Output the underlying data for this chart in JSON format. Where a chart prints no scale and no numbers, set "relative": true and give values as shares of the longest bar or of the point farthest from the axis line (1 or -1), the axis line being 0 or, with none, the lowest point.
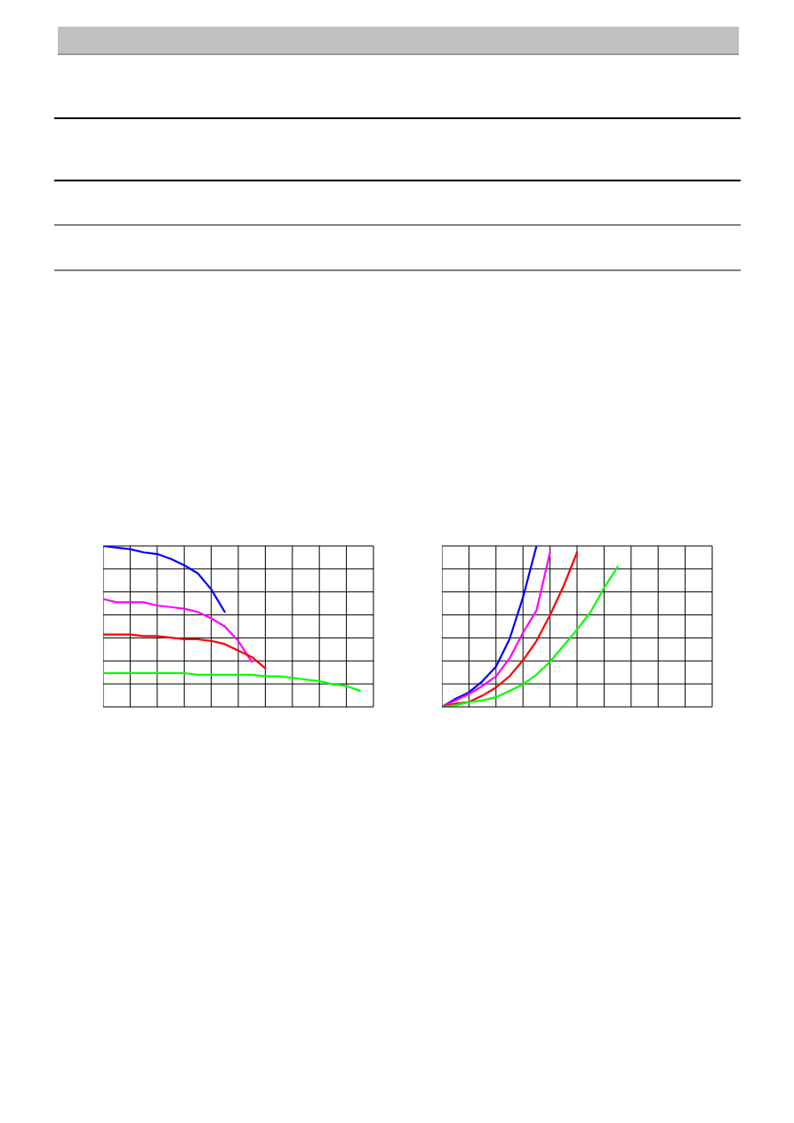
{
  "chart_data": [
    {
      "type": "line",
      "relative": true,
      "grid": true,
      "marker": "none",
      "categories": [
        null,
        null,
        null,
        null,
        null,
        null,
        null,
        null,
        null,
        null,
        null,
        null,
        null,
        null,
        null,
        null,
        null,
        null,
        null,
        null,
        null
      ],
      "series": [
        {
          "color": "#0000ff",
          "values": [
            1,
            0.99,
            0.98,
            0.96,
            0.95,
            0.92,
            0.88,
            0.83,
            0.73,
            0.59,
            null,
            null,
            null,
            null,
            null,
            null,
            null,
            null,
            null,
            null,
            null
          ]
        },
        {
          "color": "#ff00ff",
          "values": [
            0.67,
            0.65,
            0.65,
            0.65,
            0.63,
            0.62,
            0.61,
            0.59,
            0.55,
            0.5,
            0.41,
            0.28,
            null,
            null,
            null,
            null,
            null,
            null,
            null,
            null,
            null
          ]
        },
        {
          "color": "#ff0000",
          "values": [
            0.45,
            0.45,
            0.45,
            0.44,
            0.44,
            0.43,
            0.42,
            0.42,
            0.41,
            0.39,
            0.35,
            0.31,
            0.24,
            null,
            null,
            null,
            null,
            null,
            null,
            null,
            null
          ]
        },
        {
          "color": "#00ff00",
          "values": [
            0.21,
            0.21,
            0.21,
            0.21,
            0.21,
            0.21,
            0.21,
            0.2,
            0.2,
            0.2,
            0.2,
            0.2,
            0.19,
            0.19,
            0.18,
            0.17,
            0.16,
            0.14,
            0.13,
            0.1,
            null
          ]
        }
      ]
    },
    {
      "type": "line",
      "relative": true,
      "grid": true,
      "marker": "none",
      "categories": [
        null,
        null,
        null,
        null,
        null,
        null,
        null,
        null,
        null,
        null,
        null,
        null,
        null,
        null,
        null,
        null,
        null,
        null,
        null,
        null,
        null
      ],
      "series": [
        {
          "color": "#0000ff",
          "values": [
            0,
            0.05,
            0.09,
            0.16,
            0.25,
            0.42,
            0.68,
            1,
            null,
            null,
            null,
            null,
            null,
            null,
            null,
            null,
            null,
            null,
            null,
            null,
            null
          ]
        },
        {
          "color": "#ff00ff",
          "values": [
            0,
            0.04,
            0.08,
            0.13,
            0.19,
            0.3,
            0.46,
            0.6,
            0.96,
            null,
            null,
            null,
            null,
            null,
            null,
            null,
            null,
            null,
            null,
            null,
            null
          ]
        },
        {
          "color": "#ff0000",
          "values": [
            0,
            0.02,
            0.03,
            0.07,
            0.12,
            0.19,
            0.29,
            0.41,
            0.57,
            0.75,
            0.96,
            null,
            null,
            null,
            null,
            null,
            null,
            null,
            null,
            null,
            null
          ]
        },
        {
          "color": "#00ff00",
          "values": [
            0,
            0.01,
            0.03,
            0.04,
            0.06,
            0.1,
            0.14,
            0.2,
            0.28,
            0.38,
            0.48,
            0.59,
            0.74,
            0.87,
            null,
            null,
            null,
            null,
            null,
            null,
            null
          ]
        }
      ]
    }
  ]
}
